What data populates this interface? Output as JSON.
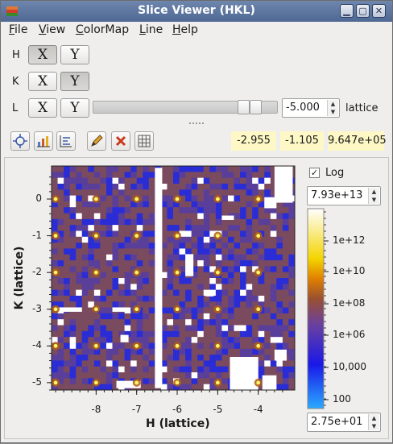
{
  "window": {
    "title": "Slice Viewer (HKL)"
  },
  "menu": [
    {
      "label": "File",
      "key": "F",
      "rest": "ile"
    },
    {
      "label": "View",
      "key": "V",
      "rest": "iew"
    },
    {
      "label": "ColorMap",
      "key": "C",
      "rest": "olorMap"
    },
    {
      "label": "Line",
      "key": "L",
      "rest": "ine"
    },
    {
      "label": "Help",
      "key": "H",
      "rest": "elp"
    }
  ],
  "dimensions": [
    {
      "name": "H",
      "x_label": "X",
      "y_label": "Y",
      "x_checked": true,
      "y_checked": false
    },
    {
      "name": "K",
      "x_label": "X",
      "y_label": "Y",
      "x_checked": false,
      "y_checked": true
    },
    {
      "name": "L",
      "x_label": "X",
      "y_label": "Y",
      "x_checked": false,
      "y_checked": false,
      "slice_value": "-5.000",
      "units": "lattice"
    }
  ],
  "toolbar_icons": [
    "crosshair-icon",
    "zoom-chart-icon",
    "rebin-icon",
    "pencil-icon",
    "clear-icon",
    "grid-icon"
  ],
  "readouts": {
    "x": "-2.955",
    "y": "-1.105",
    "signal": "9.647e+05"
  },
  "colorbar": {
    "log_label": "Log",
    "log_checked": true,
    "max_value": "7.93e+13",
    "min_value": "2.75e+01",
    "tick_labels": [
      "1e+12",
      "1e+10",
      "1e+08",
      "1e+06",
      "10,000",
      "100"
    ]
  },
  "chart_data": {
    "type": "heatmap",
    "xlabel": "H (lattice)",
    "ylabel": "K (lattice)",
    "xlim": [
      -9.1,
      -3.1
    ],
    "ylim": [
      -5.2,
      0.9
    ],
    "x_ticks": [
      -8,
      -7,
      -6,
      -5,
      -4
    ],
    "y_ticks": [
      0,
      -1,
      -2,
      -3,
      -4,
      -5
    ],
    "peaks_h": [
      -9,
      -8,
      -7,
      -6,
      -5,
      -4
    ],
    "peaks_k": [
      0,
      -1,
      -2,
      -3,
      -4,
      -5
    ],
    "colormap": [
      "#3a7bff",
      "#2a2dd6",
      "#5a3f9a",
      "#7a4a5e",
      "#b06010",
      "#f0c000",
      "#fff56a"
    ]
  }
}
